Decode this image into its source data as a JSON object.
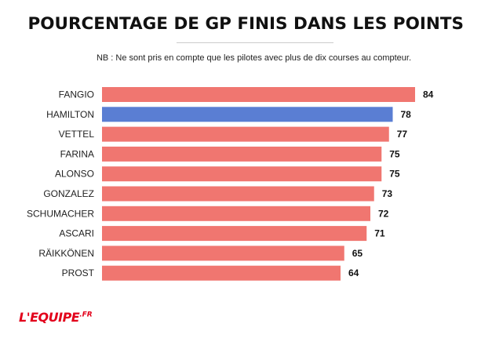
{
  "chart_data": {
    "type": "bar",
    "orientation": "horizontal",
    "title": "POURCENTAGE DE GP FINIS DANS LES POINTS",
    "subtitle": "NB : Ne sont pris en compte que les pilotes avec plus de dix courses au compteur.",
    "categories": [
      "FANGIO",
      "HAMILTON",
      "VETTEL",
      "FARINA",
      "ALONSO",
      "GONZALEZ",
      "SCHUMACHER",
      "ASCARI",
      "RÄIKKÖNEN",
      "PROST"
    ],
    "values": [
      84,
      78,
      77,
      75,
      75,
      73,
      72,
      71,
      65,
      64
    ],
    "highlight": "HAMILTON",
    "xlim": [
      0,
      84
    ],
    "grid": false,
    "legend": "none",
    "colors": {
      "bar": "#f07670",
      "highlight": "#5a7ed3"
    }
  },
  "brand": {
    "name": "L'EQUIPE",
    "suffix": ".FR"
  }
}
